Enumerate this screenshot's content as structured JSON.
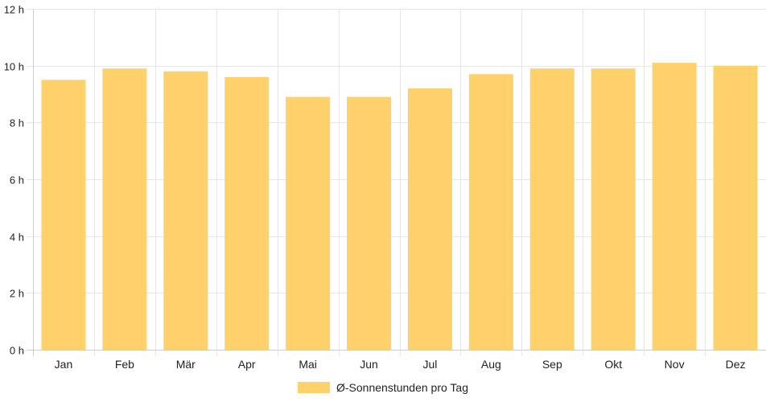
{
  "chart_data": {
    "type": "bar",
    "categories": [
      "Jan",
      "Feb",
      "Mär",
      "Apr",
      "Mai",
      "Jun",
      "Jul",
      "Aug",
      "Sep",
      "Okt",
      "Nov",
      "Dez"
    ],
    "series": [
      {
        "name": "Ø-Sonnenstunden pro Tag",
        "values": [
          9.5,
          9.9,
          9.8,
          9.6,
          8.9,
          8.9,
          9.2,
          9.7,
          9.9,
          9.9,
          10.1,
          10.0
        ]
      }
    ],
    "y_ticks": [
      "0 h",
      "2 h",
      "4 h",
      "6 h",
      "8 h",
      "10 h",
      "12 h"
    ],
    "ylim": [
      0,
      12
    ],
    "grid": true,
    "legend_position": "bottom",
    "colors": {
      "bar": "#fed16a",
      "grid": "#e6e6e6",
      "axis": "#cccccc"
    }
  }
}
